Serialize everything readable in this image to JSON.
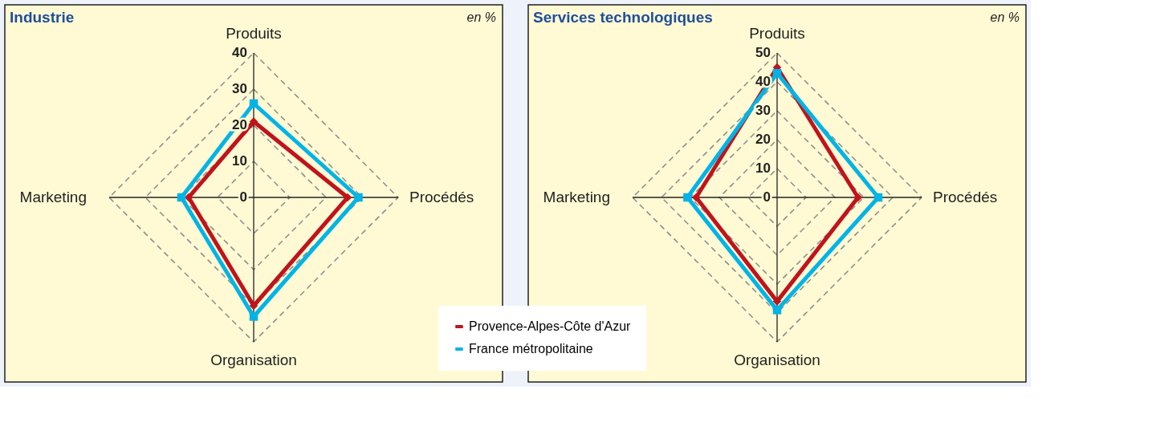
{
  "chart_data": [
    {
      "type": "radar",
      "title": "Industrie",
      "annotations": [
        "en %"
      ],
      "categories": [
        "Produits",
        "Procédés",
        "Organisation",
        "Marketing"
      ],
      "ylim": [
        0,
        40
      ],
      "yticks": [
        0,
        10,
        20,
        30,
        40
      ],
      "grid": true,
      "legend": "bottom right",
      "line_style": "solid",
      "series": [
        {
          "name": "Provence-Alpes-Côte d'Azur",
          "color": "#c0141c",
          "marker": "diamond",
          "values": [
            21,
            26,
            30,
            18
          ]
        },
        {
          "name": "France métropolitaine",
          "color": "#00b4e6",
          "marker": "square",
          "values": [
            26,
            29,
            33,
            20
          ]
        }
      ]
    },
    {
      "type": "radar",
      "title": "Services technologiques",
      "annotations": [
        "en %"
      ],
      "categories": [
        "Produits",
        "Procédés",
        "Organisation",
        "Marketing"
      ],
      "ylim": [
        0,
        50
      ],
      "yticks": [
        0,
        10,
        20,
        30,
        40,
        50
      ],
      "grid": true,
      "line_style": "solid",
      "series": [
        {
          "name": "Provence-Alpes-Côte d'Azur",
          "color": "#c0141c",
          "marker": "diamond",
          "values": [
            45,
            28,
            36,
            28
          ]
        },
        {
          "name": "France métropolitaine",
          "color": "#00b4e6",
          "marker": "square",
          "values": [
            43,
            35,
            39,
            31
          ]
        }
      ]
    }
  ]
}
